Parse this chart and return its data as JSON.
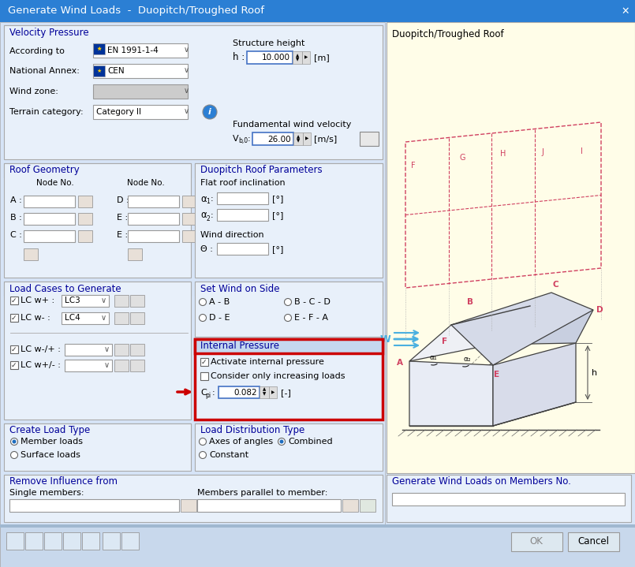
{
  "title": "Generate Wind Loads  -  Duopitch/Troughed Roof",
  "title_bg": "#2b7fd4",
  "title_fg": "#ffffff",
  "dialog_bg": "#d6e4f7",
  "section_bg": "#e8f0fa",
  "section_hdr_bg": "#c5d8ef",
  "input_bg": "#ffffff",
  "highlight_border": "#cc0000",
  "arrow_color": "#cc0000",
  "right_panel_bg": "#fffde8",
  "right_panel_title": "Duopitch/Troughed Roof",
  "internal_pressure_label": "Internal Pressure",
  "cpi_value": "0.082",
  "blue_label": "#000099",
  "wind_blue": "#4ab0e0",
  "diagram_red": "#d04060",
  "figsize": [
    8.05,
    7.19
  ],
  "dpi": 100
}
